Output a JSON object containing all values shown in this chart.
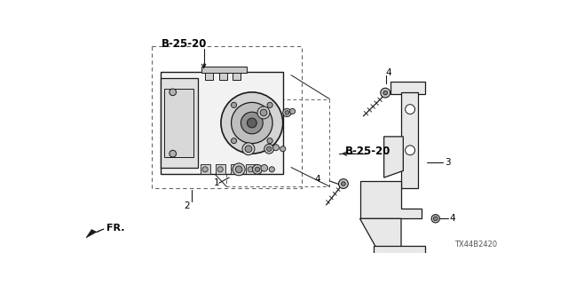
{
  "bg_color": "#ffffff",
  "line_color": "#1a1a1a",
  "label_color": "#000000",
  "labels": {
    "b25_20_top": "B-25-20",
    "b25_20_mid": "B-25-20",
    "num1": "1",
    "num2": "2",
    "num3": "3",
    "num4_top": "4",
    "num4_mid": "4",
    "num4_bot": "4",
    "fr": "FR.",
    "diagram_code": "TX44B2420"
  },
  "figsize": [
    6.4,
    3.2
  ],
  "dpi": 100,
  "xlim": [
    0,
    640
  ],
  "ylim": [
    0,
    320
  ]
}
